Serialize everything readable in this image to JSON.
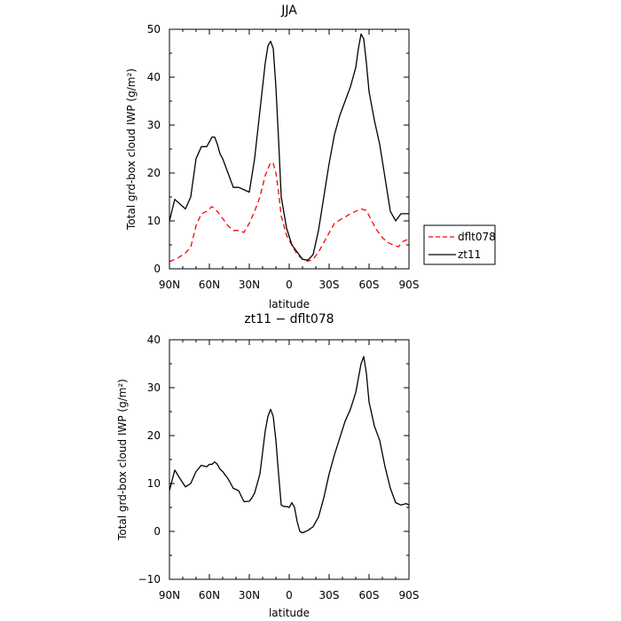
{
  "chart_data": [
    {
      "type": "line",
      "title": "JJA",
      "xlabel": "latitude",
      "ylabel": "Total grd-box cloud IWP (g/m²)",
      "xlim": [
        -90,
        90
      ],
      "ylim": [
        0,
        50
      ],
      "x_ticks": [
        -90,
        -60,
        -30,
        0,
        30,
        60,
        90
      ],
      "x_tick_labels": [
        "90N",
        "60N",
        "30N",
        "0",
        "30S",
        "60S",
        "90S"
      ],
      "y_ticks": [
        0,
        10,
        20,
        30,
        40,
        50
      ],
      "y_tick_labels": [
        "0",
        "10",
        "20",
        "30",
        "40",
        "50"
      ],
      "legend": "right",
      "series": [
        {
          "name": "dflt078",
          "color": "#ff0000",
          "style": "dashed",
          "x": [
            -90,
            -84,
            -78,
            -74,
            -70,
            -66,
            -62,
            -58,
            -54,
            -50,
            -46,
            -42,
            -38,
            -34,
            -30,
            -26,
            -22,
            -18,
            -14,
            -12,
            -10,
            -8,
            -6,
            -2,
            2,
            6,
            10,
            14,
            18,
            22,
            26,
            30,
            34,
            38,
            42,
            46,
            50,
            54,
            58,
            62,
            66,
            70,
            74,
            78,
            82,
            86,
            90
          ],
          "y": [
            1.5,
            2.2,
            3.3,
            4.5,
            9,
            11.5,
            12,
            13,
            12,
            10.5,
            9,
            8,
            8,
            7.6,
            9.5,
            12,
            15,
            19.5,
            22.2,
            22,
            20,
            16,
            11,
            7,
            5,
            3,
            2,
            1.6,
            2,
            3.5,
            5.5,
            7.5,
            9.5,
            10.2,
            10.8,
            11.5,
            12,
            12.5,
            12.2,
            10,
            8,
            6.5,
            5.5,
            5,
            4.6,
            5.8,
            6.2
          ]
        },
        {
          "name": "zt11",
          "color": "#000000",
          "style": "solid",
          "x": [
            -90,
            -86,
            -82,
            -78,
            -74,
            -70,
            -66,
            -62,
            -60,
            -58,
            -56,
            -54,
            -52,
            -50,
            -46,
            -42,
            -38,
            -34,
            -30,
            -26,
            -22,
            -18,
            -16,
            -14,
            -12,
            -10,
            -8,
            -6,
            -2,
            2,
            6,
            10,
            14,
            18,
            22,
            26,
            30,
            34,
            38,
            42,
            46,
            50,
            52,
            54,
            56,
            58,
            60,
            64,
            68,
            72,
            76,
            80,
            84,
            88,
            90
          ],
          "y": [
            10,
            14.5,
            13.5,
            12.5,
            15,
            23,
            25.5,
            25.5,
            26.5,
            27.5,
            27.5,
            26,
            24,
            23,
            20,
            17,
            17,
            16.5,
            16,
            23,
            33,
            43,
            46.5,
            47.5,
            46,
            38,
            27,
            15,
            8.5,
            5,
            3.5,
            2,
            1.8,
            3,
            8,
            15,
            22,
            28,
            32,
            35,
            38,
            42,
            46,
            49,
            48,
            43,
            37,
            31,
            26,
            19,
            12,
            10,
            11.5,
            11.5,
            11.5
          ]
        }
      ]
    },
    {
      "type": "line",
      "title": "zt11 − dflt078",
      "xlabel": "latitude",
      "ylabel": "Total grd-box cloud IWP (g/m²)",
      "xlim": [
        -90,
        90
      ],
      "ylim": [
        -10,
        40
      ],
      "x_ticks": [
        -90,
        -60,
        -30,
        0,
        30,
        60,
        90
      ],
      "x_tick_labels": [
        "90N",
        "60N",
        "30N",
        "0",
        "30S",
        "60S",
        "90S"
      ],
      "y_ticks": [
        -10,
        0,
        10,
        20,
        30,
        40
      ],
      "y_tick_labels": [
        "−10",
        "0",
        "10",
        "20",
        "30",
        "40"
      ],
      "series": [
        {
          "name": "",
          "color": "#000000",
          "style": "solid",
          "x": [
            -90,
            -86,
            -82,
            -78,
            -74,
            -70,
            -66,
            -62,
            -60,
            -58,
            -56,
            -54,
            -52,
            -50,
            -46,
            -42,
            -38,
            -34,
            -30,
            -28,
            -26,
            -22,
            -18,
            -16,
            -14,
            -12,
            -10,
            -8,
            -6,
            -4,
            -2,
            0,
            2,
            4,
            6,
            8,
            10,
            14,
            18,
            22,
            26,
            30,
            34,
            38,
            42,
            46,
            50,
            52,
            54,
            56,
            58,
            60,
            64,
            68,
            72,
            76,
            80,
            84,
            88,
            90
          ],
          "y": [
            8.5,
            12.8,
            11,
            9.3,
            10,
            12.5,
            13.8,
            13.5,
            14,
            14,
            14.5,
            14,
            13,
            12.5,
            11,
            9,
            8.5,
            6.2,
            6.3,
            7,
            8,
            12,
            21,
            24,
            25.5,
            24,
            19,
            12,
            5.5,
            5.2,
            5.2,
            5,
            6,
            5,
            2,
            0,
            -0.3,
            0.2,
            1,
            3,
            7,
            12,
            16,
            19.5,
            23,
            25.5,
            29,
            32,
            35,
            36.5,
            33,
            27,
            22,
            19,
            13.5,
            9,
            6,
            5.5,
            5.8,
            5.5
          ]
        }
      ]
    }
  ]
}
